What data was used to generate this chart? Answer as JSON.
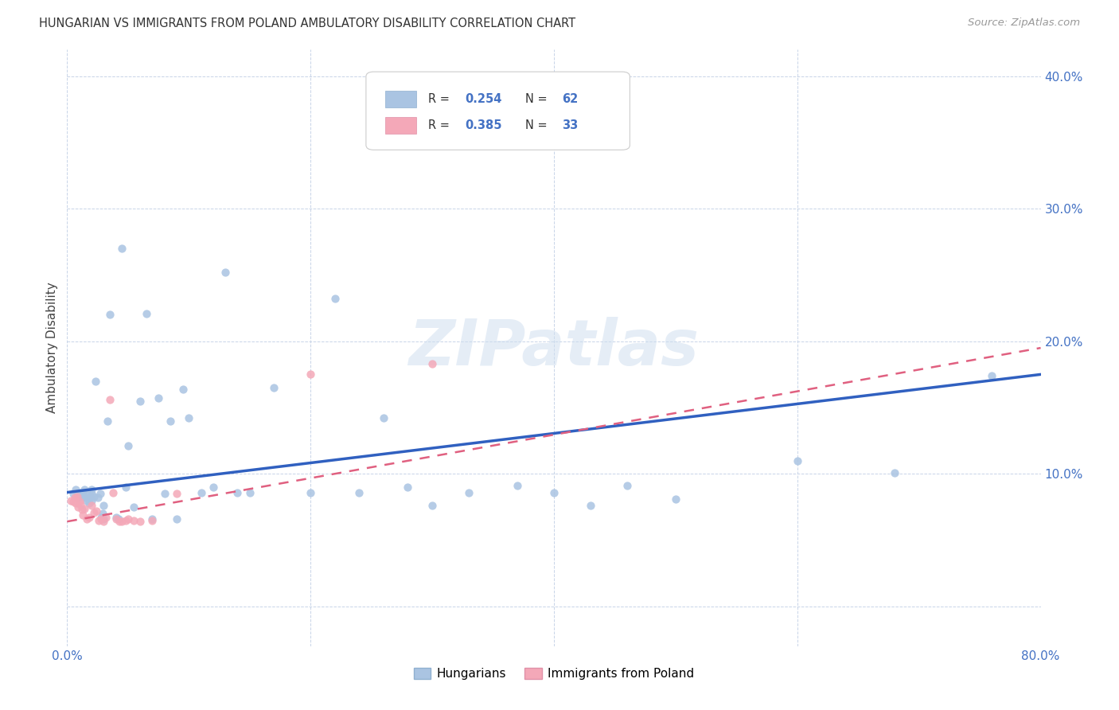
{
  "title": "HUNGARIAN VS IMMIGRANTS FROM POLAND AMBULATORY DISABILITY CORRELATION CHART",
  "source": "Source: ZipAtlas.com",
  "ylabel": "Ambulatory Disability",
  "xlim": [
    0.0,
    0.8
  ],
  "ylim": [
    -0.03,
    0.42
  ],
  "x_ticks": [
    0.0,
    0.2,
    0.4,
    0.6,
    0.8
  ],
  "x_tick_labels": [
    "0.0%",
    "",
    "",
    "",
    "80.0%"
  ],
  "y_ticks": [
    0.0,
    0.1,
    0.2,
    0.3,
    0.4
  ],
  "y_tick_labels": [
    "",
    "10.0%",
    "20.0%",
    "30.0%",
    "40.0%"
  ],
  "hungarian_color": "#aac4e2",
  "poland_color": "#f4a8b8",
  "hungarian_line_color": "#3060c0",
  "poland_line_color": "#e06080",
  "hungarian_R": 0.254,
  "hungarian_N": 62,
  "poland_R": 0.385,
  "poland_N": 33,
  "watermark": "ZIPatlas",
  "legend_labels": [
    "Hungarians",
    "Immigrants from Poland"
  ],
  "hungarian_x": [
    0.005,
    0.007,
    0.008,
    0.009,
    0.01,
    0.012,
    0.013,
    0.014,
    0.015,
    0.016,
    0.017,
    0.018,
    0.019,
    0.02,
    0.02,
    0.02,
    0.022,
    0.023,
    0.025,
    0.027,
    0.028,
    0.029,
    0.03,
    0.03,
    0.033,
    0.035,
    0.04,
    0.042,
    0.045,
    0.048,
    0.05,
    0.055,
    0.06,
    0.065,
    0.07,
    0.075,
    0.08,
    0.085,
    0.09,
    0.095,
    0.1,
    0.11,
    0.12,
    0.13,
    0.14,
    0.15,
    0.17,
    0.2,
    0.22,
    0.24,
    0.26,
    0.28,
    0.3,
    0.33,
    0.37,
    0.4,
    0.43,
    0.46,
    0.5,
    0.6,
    0.68,
    0.76
  ],
  "hungarian_y": [
    0.085,
    0.088,
    0.085,
    0.082,
    0.086,
    0.083,
    0.086,
    0.088,
    0.082,
    0.08,
    0.084,
    0.078,
    0.083,
    0.088,
    0.085,
    0.08,
    0.083,
    0.17,
    0.082,
    0.085,
    0.067,
    0.07,
    0.066,
    0.076,
    0.14,
    0.22,
    0.067,
    0.066,
    0.27,
    0.09,
    0.121,
    0.075,
    0.155,
    0.221,
    0.066,
    0.157,
    0.085,
    0.14,
    0.066,
    0.164,
    0.142,
    0.086,
    0.09,
    0.252,
    0.086,
    0.086,
    0.165,
    0.086,
    0.232,
    0.086,
    0.142,
    0.09,
    0.076,
    0.086,
    0.091,
    0.086,
    0.076,
    0.091,
    0.081,
    0.11,
    0.101,
    0.174
  ],
  "poland_x": [
    0.003,
    0.005,
    0.006,
    0.007,
    0.008,
    0.009,
    0.01,
    0.011,
    0.012,
    0.013,
    0.014,
    0.016,
    0.018,
    0.02,
    0.022,
    0.024,
    0.026,
    0.028,
    0.03,
    0.032,
    0.035,
    0.038,
    0.04,
    0.043,
    0.045,
    0.048,
    0.05,
    0.055,
    0.06,
    0.07,
    0.09,
    0.2,
    0.3
  ],
  "poland_y": [
    0.08,
    0.079,
    0.082,
    0.078,
    0.083,
    0.075,
    0.079,
    0.077,
    0.073,
    0.069,
    0.074,
    0.066,
    0.067,
    0.076,
    0.071,
    0.072,
    0.065,
    0.066,
    0.064,
    0.067,
    0.156,
    0.086,
    0.066,
    0.064,
    0.064,
    0.065,
    0.066,
    0.065,
    0.064,
    0.065,
    0.085,
    0.175,
    0.183
  ],
  "blue_line_x0": 0.0,
  "blue_line_y0": 0.086,
  "blue_line_x1": 0.8,
  "blue_line_y1": 0.175,
  "pink_line_x0": 0.0,
  "pink_line_y0": 0.064,
  "pink_line_x1": 0.8,
  "pink_line_y1": 0.195
}
